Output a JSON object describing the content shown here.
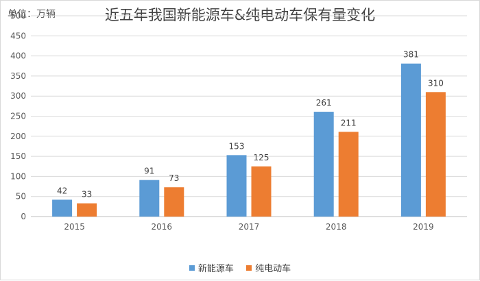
{
  "unit_label": "单位：万辆",
  "chart_data": {
    "type": "bar",
    "title": "近五年我国新能源车&纯电动车保有量变化",
    "xlabel": "",
    "ylabel": "",
    "categories": [
      "2015",
      "2016",
      "2017",
      "2018",
      "2019"
    ],
    "series": [
      {
        "name": "新能源车",
        "color": "#5b9bd5",
        "values": [
          42,
          91,
          153,
          261,
          381
        ]
      },
      {
        "name": "纯电动车",
        "color": "#ed7d31",
        "values": [
          33,
          73,
          125,
          211,
          310
        ]
      }
    ],
    "ylim": [
      0,
      500
    ],
    "yticks": [
      0,
      50,
      100,
      150,
      200,
      250,
      300,
      350,
      400,
      450,
      500
    ],
    "grid": true,
    "data_labels": true,
    "legend_position": "bottom"
  }
}
